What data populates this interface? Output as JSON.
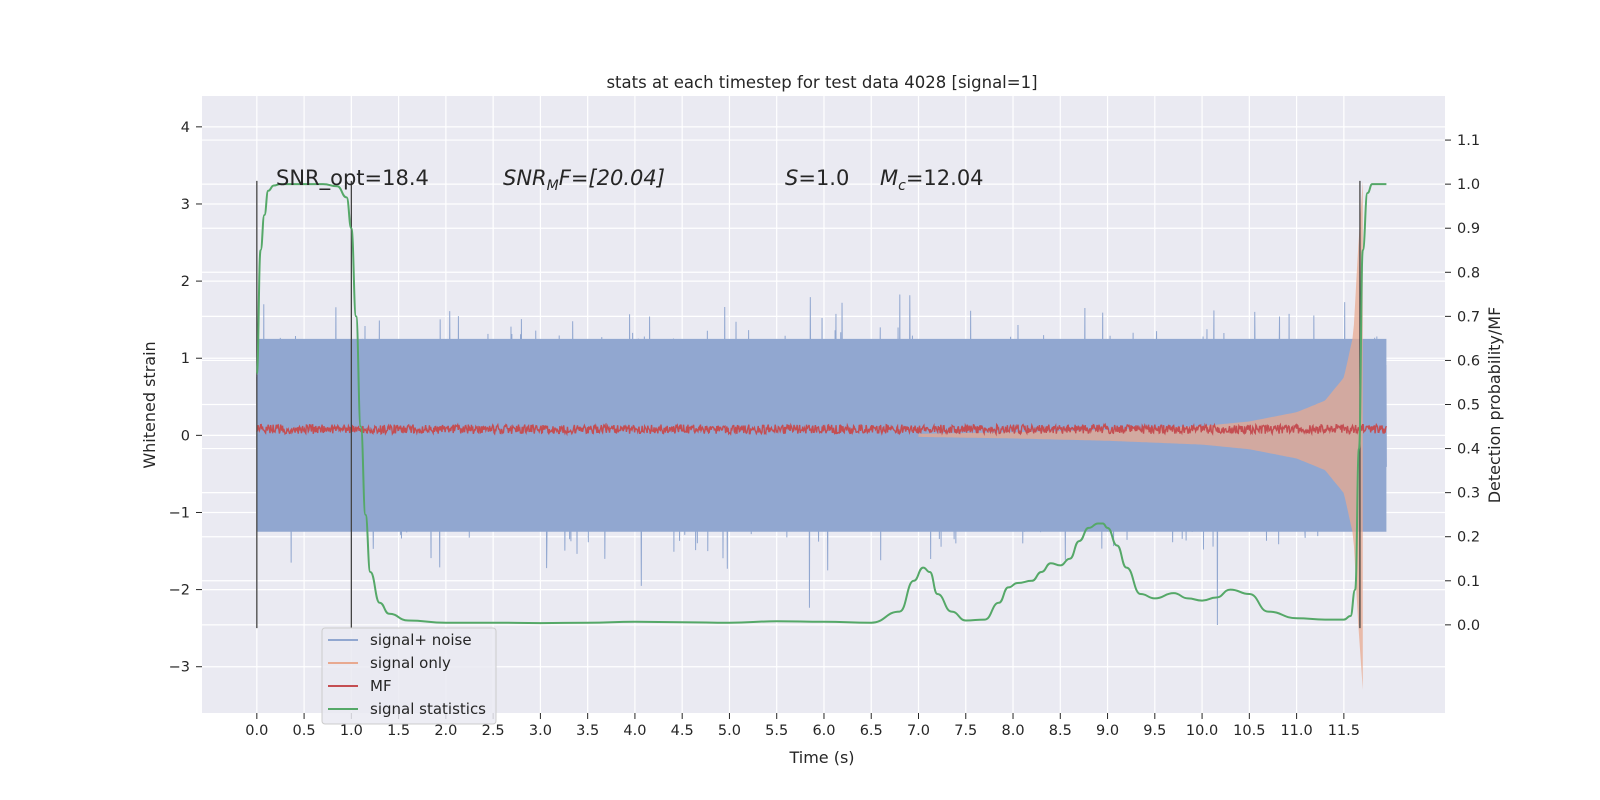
{
  "chart_data": {
    "type": "line",
    "title": "stats at each timestep for test data 4028 [signal=1]",
    "xlabel": "Time (s)",
    "ylabel_left": "Whitened strain",
    "ylabel_right": "Detection probability/MF",
    "xlim": [
      -0.58,
      12.57
    ],
    "ylim_left": [
      -3.6,
      4.4
    ],
    "ylim_right": [
      -0.2,
      1.2
    ],
    "x_ticks": [
      "0.0",
      "0.5",
      "1.0",
      "1.5",
      "2.0",
      "2.5",
      "3.0",
      "3.5",
      "4.0",
      "4.5",
      "5.0",
      "5.5",
      "6.0",
      "6.5",
      "7.0",
      "7.5",
      "8.0",
      "8.5",
      "9.0",
      "9.5",
      "10.0",
      "10.5",
      "11.0",
      "11.5"
    ],
    "y_ticks_left": [
      "−3",
      "−2",
      "−1",
      "0",
      "1",
      "2",
      "3",
      "4"
    ],
    "y_ticks_right": [
      "0.0",
      "0.1",
      "0.2",
      "0.3",
      "0.4",
      "0.5",
      "0.6",
      "0.7",
      "0.8",
      "0.9",
      "1.0",
      "1.1"
    ],
    "grid": true,
    "legend_position": "lower-left",
    "series": [
      {
        "name": "signal+ noise",
        "axis": "left",
        "color": "#91a7d0",
        "description_range": [
          -2.5,
          2.5
        ],
        "duration": [
          0.0,
          11.95
        ]
      },
      {
        "name": "signal only",
        "axis": "left",
        "color": "#e8a990",
        "envelope": {
          "x": [
            7.0,
            8.0,
            9.0,
            10.0,
            10.5,
            11.0,
            11.3,
            11.5,
            11.6,
            11.65,
            11.7
          ],
          "amplitude": [
            0.02,
            0.04,
            0.07,
            0.12,
            0.18,
            0.3,
            0.45,
            0.75,
            1.3,
            2.4,
            3.3
          ]
        }
      },
      {
        "name": "MF",
        "axis": "left",
        "color": "#c44e52",
        "mean": 0.08,
        "amplitude": 0.06
      },
      {
        "name": "signal statistics",
        "axis": "right",
        "color": "#55a868",
        "x": [
          0.0,
          0.04,
          0.08,
          0.12,
          0.18,
          0.25,
          0.35,
          0.5,
          0.7,
          0.85,
          0.95,
          1.0,
          1.05,
          1.1,
          1.15,
          1.2,
          1.3,
          1.4,
          1.6,
          2.0,
          2.5,
          3.0,
          3.5,
          4.0,
          4.5,
          5.0,
          5.5,
          6.0,
          6.5,
          6.8,
          6.95,
          7.05,
          7.12,
          7.2,
          7.35,
          7.5,
          7.7,
          7.85,
          7.95,
          8.05,
          8.2,
          8.3,
          8.4,
          8.5,
          8.6,
          8.7,
          8.8,
          8.9,
          8.95,
          9.0,
          9.1,
          9.2,
          9.35,
          9.5,
          9.7,
          9.85,
          10.0,
          10.15,
          10.3,
          10.5,
          10.7,
          11.0,
          11.3,
          11.5,
          11.57,
          11.62,
          11.66,
          11.7,
          11.75,
          11.8,
          11.85,
          11.95
        ],
        "y": [
          0.57,
          0.85,
          0.93,
          0.985,
          0.997,
          1.0,
          1.0,
          1.0,
          1.0,
          0.995,
          0.97,
          0.9,
          0.7,
          0.45,
          0.25,
          0.12,
          0.05,
          0.025,
          0.01,
          0.005,
          0.005,
          0.004,
          0.005,
          0.007,
          0.006,
          0.005,
          0.008,
          0.007,
          0.005,
          0.03,
          0.1,
          0.13,
          0.12,
          0.07,
          0.03,
          0.01,
          0.012,
          0.05,
          0.085,
          0.095,
          0.1,
          0.12,
          0.14,
          0.135,
          0.15,
          0.19,
          0.22,
          0.23,
          0.23,
          0.22,
          0.18,
          0.13,
          0.07,
          0.06,
          0.072,
          0.06,
          0.055,
          0.062,
          0.08,
          0.07,
          0.03,
          0.015,
          0.012,
          0.012,
          0.02,
          0.08,
          0.4,
          0.85,
          0.98,
          1.0,
          1.0,
          1.0
        ]
      }
    ],
    "vertical_lines": [
      0.0,
      1.0,
      11.67
    ],
    "annotations": [
      {
        "text": "SNR_opt=18.4",
        "x": 0.2
      },
      {
        "text": "F=[20.04]",
        "math_prefix": "SNR",
        "math_sub": "M",
        "x": 2.6
      },
      {
        "text": "=1.0",
        "math_prefix": "S",
        "math_sub": "",
        "x": 5.6
      },
      {
        "text": "=12.04",
        "math_prefix": "M",
        "math_sub": "c",
        "x": 6.6
      }
    ]
  }
}
